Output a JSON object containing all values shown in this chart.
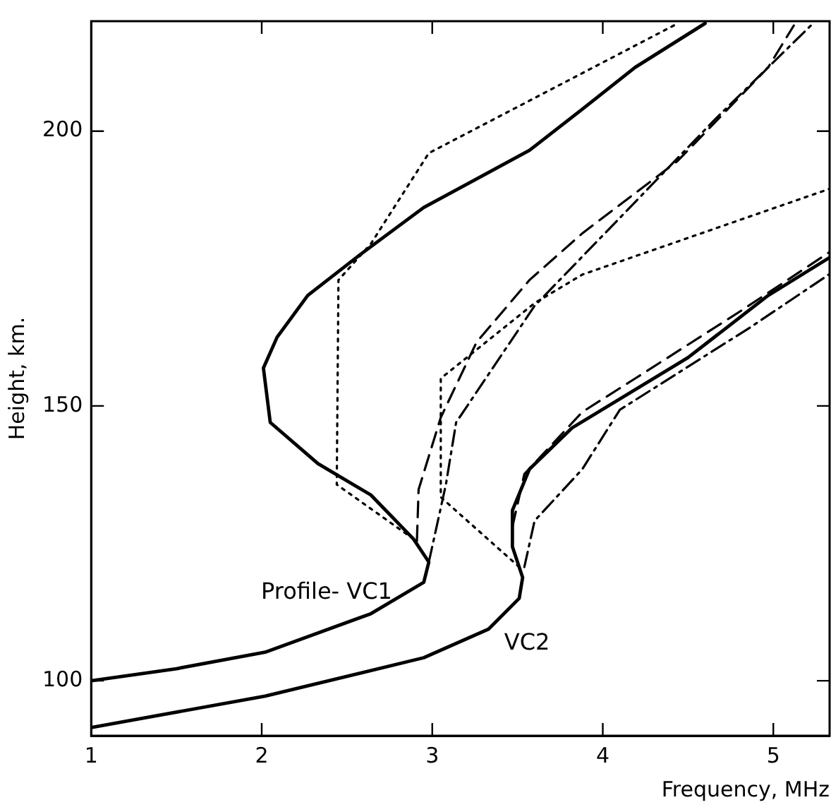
{
  "chart_data": {
    "type": "line",
    "xlabel": "Frequency, MHz",
    "ylabel": "Height, km.",
    "xlim": [
      1,
      5.33
    ],
    "xticks": [
      1,
      2,
      3,
      4,
      5
    ],
    "ylim": [
      90,
      220
    ],
    "yticks": [
      100,
      150,
      200
    ],
    "grid": false,
    "legend": false,
    "marker": "none",
    "series": [
      {
        "name": "Profile- VC1",
        "color": "#000000",
        "line_style": "solid",
        "x": [
          1,
          1.5,
          2.02,
          2.64,
          2.95,
          2.98,
          2.89,
          2.64,
          2.33,
          2.05,
          2.01,
          2.09,
          2.27,
          2.58,
          2.95,
          3.57,
          3.88,
          4.19,
          4.6
        ],
        "values": [
          100,
          102.2,
          105.2,
          112.2,
          117.9,
          121.6,
          125.8,
          133.8,
          139.5,
          147,
          156.9,
          162.5,
          170.1,
          177.6,
          186.1,
          196.5,
          204,
          211.6,
          219.6
        ]
      },
      {
        "name": "VC2",
        "color": "#000000",
        "line_style": "solid",
        "x": [
          1,
          2.02,
          2.95,
          3.33,
          3.51,
          3.53,
          3.47,
          3.47,
          3.57,
          3.82,
          4.5,
          4.97,
          5.33
        ],
        "values": [
          91.5,
          97.2,
          104.2,
          109.4,
          115,
          118.8,
          124.4,
          131,
          138.5,
          146,
          158.8,
          170.1,
          177
        ]
      },
      {
        "color": "#000000",
        "line_style": "dashed",
        "x": [
          2.91,
          2.92,
          3.05,
          3.26,
          3.57,
          3.88,
          4.44,
          4.97,
          5.12
        ],
        "values": [
          125.4,
          134.8,
          147.9,
          161.6,
          172.9,
          181.4,
          194.6,
          211.6,
          219.2
        ]
      },
      {
        "color": "#000000",
        "line_style": "dashdot",
        "x": [
          2.98,
          3.08,
          3.14,
          3.6,
          4.19,
          4.66,
          5.22
        ],
        "values": [
          121.6,
          135.7,
          147,
          168.2,
          187.1,
          202.2,
          219.2
        ]
      },
      {
        "color": "#000000",
        "line_style": "dotted",
        "x": [
          2.89,
          2.44,
          2.45,
          2.64,
          2.98,
          4.44
        ],
        "values": [
          125.8,
          135.7,
          172.9,
          179.5,
          196,
          219.6
        ]
      },
      {
        "color": "#000000",
        "line_style": "dotted",
        "x": [
          3.51,
          3.05,
          3.05,
          3.6,
          3.88,
          5.33
        ],
        "values": [
          120.7,
          133.4,
          155,
          168.7,
          173.9,
          189.5
        ]
      },
      {
        "color": "#000000",
        "line_style": "dashed",
        "x": [
          3.47,
          3.54,
          3.88,
          4.19,
          4.81,
          5.33
        ],
        "values": [
          128,
          137.6,
          148.9,
          155,
          167.3,
          178
        ]
      },
      {
        "color": "#000000",
        "line_style": "dashdot",
        "x": [
          3.54,
          3.6,
          3.88,
          4.1,
          4.87,
          5.33
        ],
        "values": [
          120.7,
          129.1,
          138.5,
          149.3,
          164.4,
          174
        ]
      }
    ]
  }
}
